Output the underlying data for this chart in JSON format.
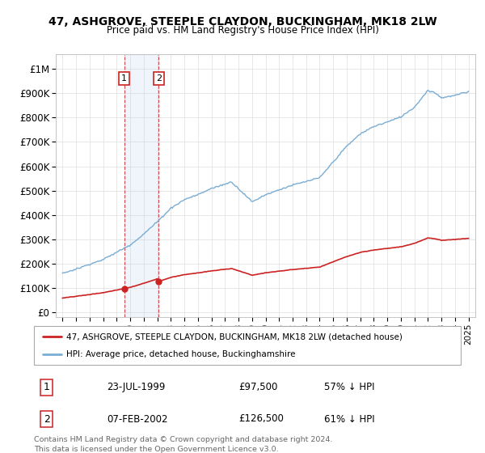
{
  "title": "47, ASHGROVE, STEEPLE CLAYDON, BUCKINGHAM, MK18 2LW",
  "subtitle": "Price paid vs. HM Land Registry's House Price Index (HPI)",
  "ylabel_ticks": [
    "£0",
    "£100K",
    "£200K",
    "£300K",
    "£400K",
    "£500K",
    "£600K",
    "£700K",
    "£800K",
    "£900K",
    "£1M"
  ],
  "ytick_values": [
    0,
    100000,
    200000,
    300000,
    400000,
    500000,
    600000,
    700000,
    800000,
    900000,
    1000000
  ],
  "xlim": [
    1994.5,
    2025.5
  ],
  "ylim": [
    -20000,
    1060000
  ],
  "hpi_color": "#7aadd4",
  "price_color": "#cc2222",
  "sale1_year": 1999.56,
  "sale1_price": 97500,
  "sale2_year": 2002.1,
  "sale2_price": 126500,
  "footnote": "Contains HM Land Registry data © Crown copyright and database right 2024.\nThis data is licensed under the Open Government Licence v3.0.",
  "legend_line1": "47, ASHGROVE, STEEPLE CLAYDON, BUCKINGHAM, MK18 2LW (detached house)",
  "legend_line2": "HPI: Average price, detached house, Buckinghamshire",
  "table_row1": [
    "1",
    "23-JUL-1999",
    "£97,500",
    "57% ↓ HPI"
  ],
  "table_row2": [
    "2",
    "07-FEB-2002",
    "£126,500",
    "61% ↓ HPI"
  ]
}
